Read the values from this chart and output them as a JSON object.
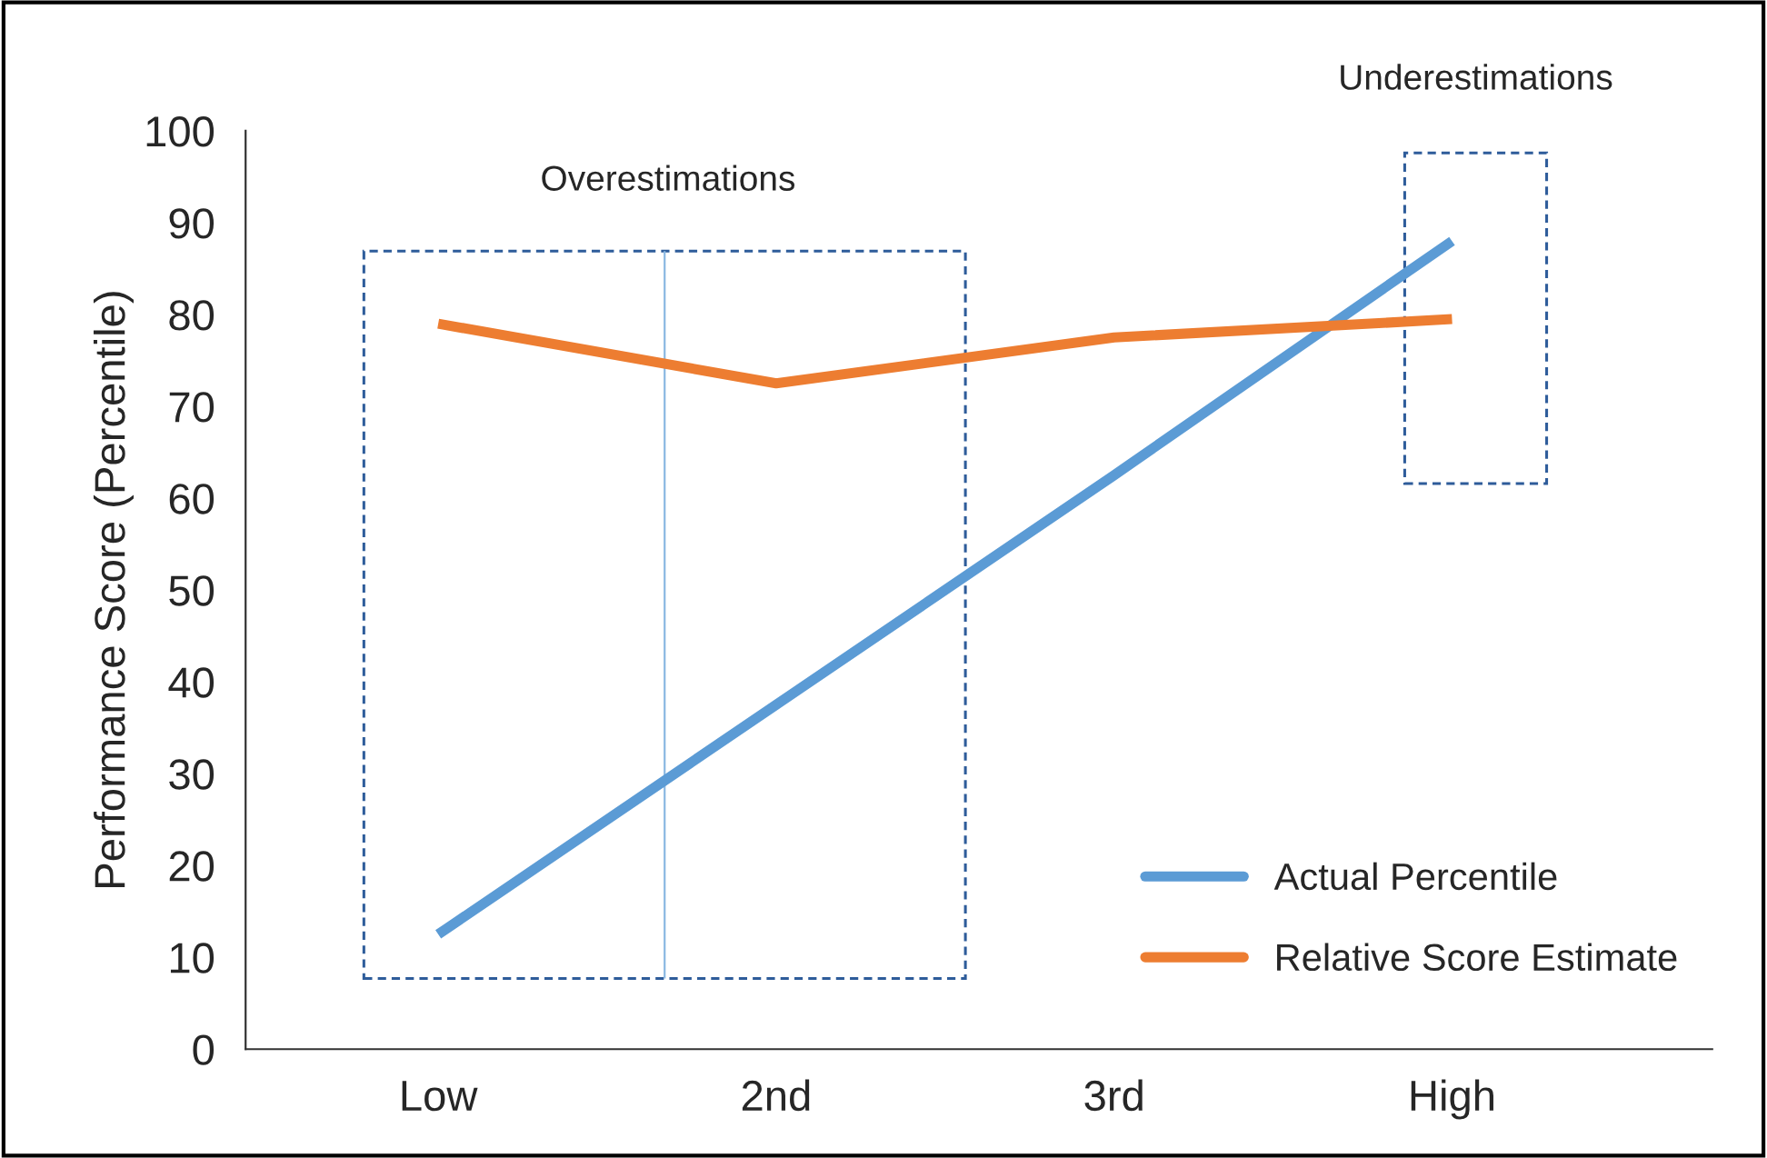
{
  "chart_data": {
    "type": "line",
    "ylabel": "Performance Score (Percentile)",
    "categories": [
      "Low",
      "2nd",
      "3rd",
      "High"
    ],
    "series": [
      {
        "name": "Actual Percentile",
        "color": "#5b9bd5",
        "values": [
          12.5,
          37.5,
          62.5,
          88
        ]
      },
      {
        "name": "Relative Score Estimate",
        "color": "#ed7d31",
        "values": [
          79,
          72.5,
          77.5,
          79.5
        ]
      }
    ],
    "ylim": [
      0,
      100
    ],
    "yticks": [
      0,
      10,
      20,
      30,
      40,
      50,
      60,
      70,
      80,
      90,
      100
    ],
    "grid": false,
    "legend": "bottom right",
    "marker": "none",
    "line_style": "solid",
    "annotations": [
      "Overestimations",
      "Underestimations"
    ]
  }
}
